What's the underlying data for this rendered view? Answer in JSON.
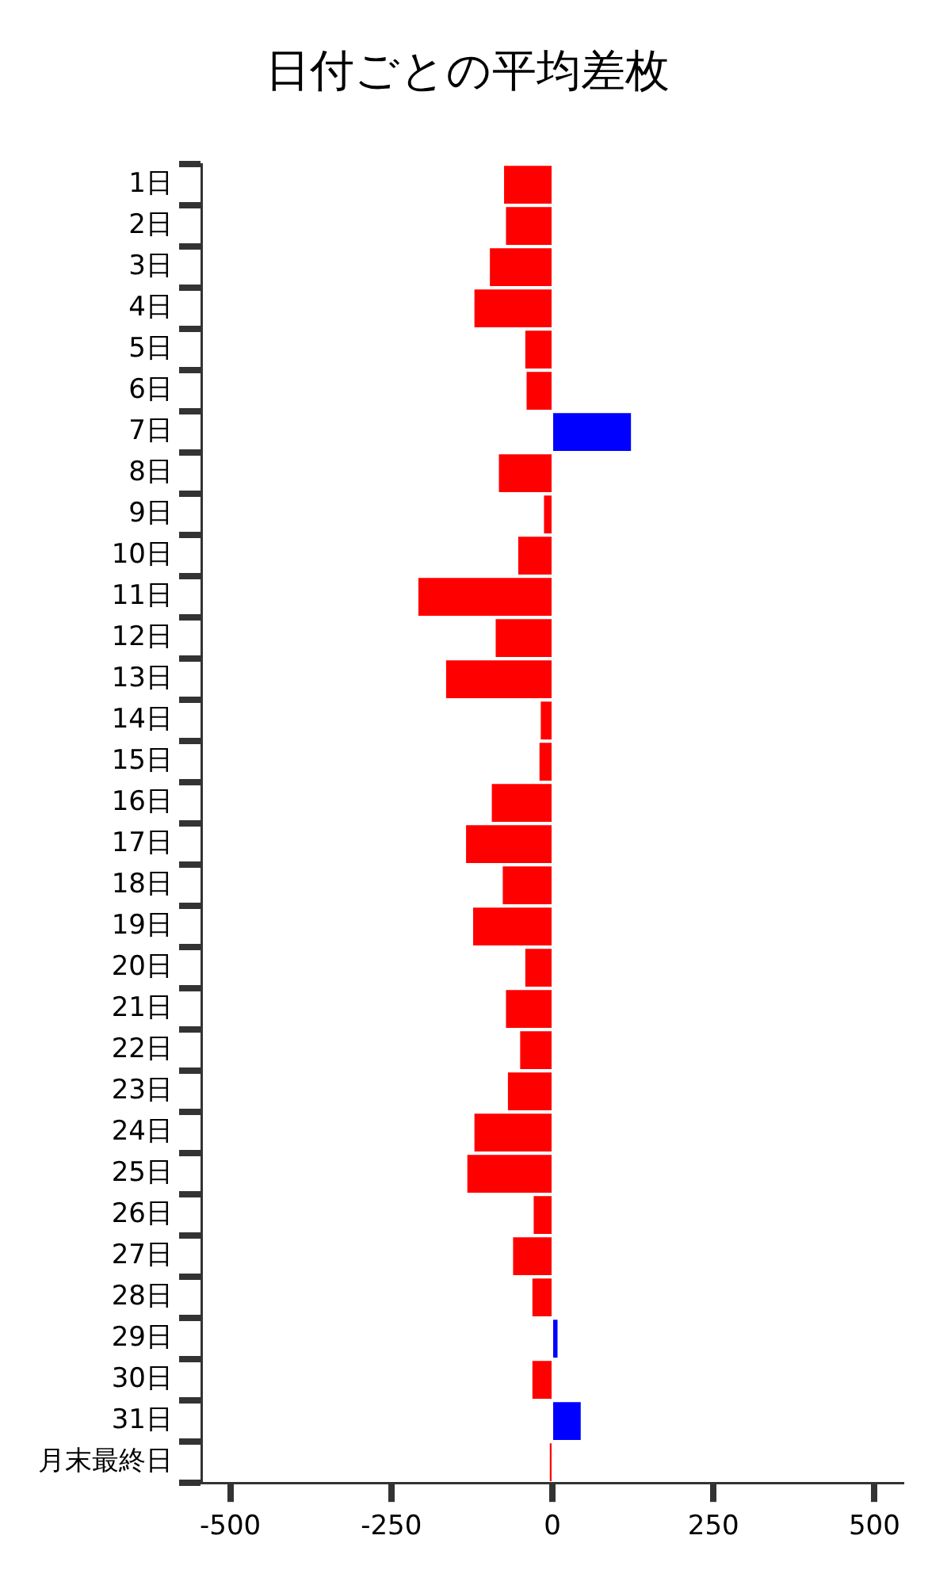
{
  "chart_data": {
    "type": "bar",
    "orientation": "horizontal",
    "title": "日付ごとの平均差枚",
    "categories": [
      "1日",
      "2日",
      "3日",
      "4日",
      "5日",
      "6日",
      "7日",
      "8日",
      "9日",
      "10日",
      "11日",
      "12日",
      "13日",
      "14日",
      "15日",
      "16日",
      "17日",
      "18日",
      "19日",
      "20日",
      "21日",
      "22日",
      "23日",
      "24日",
      "25日",
      "26日",
      "27日",
      "28日",
      "29日",
      "30日",
      "31日",
      "月末最終日"
    ],
    "values": [
      -75,
      -72,
      -97,
      -121,
      -42,
      -40,
      122,
      -83,
      -13,
      -53,
      -208,
      -88,
      -165,
      -18,
      -20,
      -94,
      -134,
      -77,
      -123,
      -42,
      -72,
      -50,
      -69,
      -121,
      -132,
      -29,
      -61,
      -31,
      8,
      -31,
      44,
      -4
    ],
    "colors": [
      "#ff0000",
      "#ff0000",
      "#ff0000",
      "#ff0000",
      "#ff0000",
      "#ff0000",
      "#0000ff",
      "#ff0000",
      "#ff0000",
      "#ff0000",
      "#ff0000",
      "#ff0000",
      "#ff0000",
      "#ff0000",
      "#ff0000",
      "#ff0000",
      "#ff0000",
      "#ff0000",
      "#ff0000",
      "#ff0000",
      "#ff0000",
      "#ff0000",
      "#ff0000",
      "#ff0000",
      "#ff0000",
      "#ff0000",
      "#ff0000",
      "#ff0000",
      "#0000ff",
      "#ff0000",
      "#0000ff",
      "#ff0000"
    ],
    "xlim": [
      -545,
      545
    ],
    "xticks": [
      -500,
      -250,
      0,
      250,
      500
    ],
    "grid": false,
    "legend": false
  }
}
